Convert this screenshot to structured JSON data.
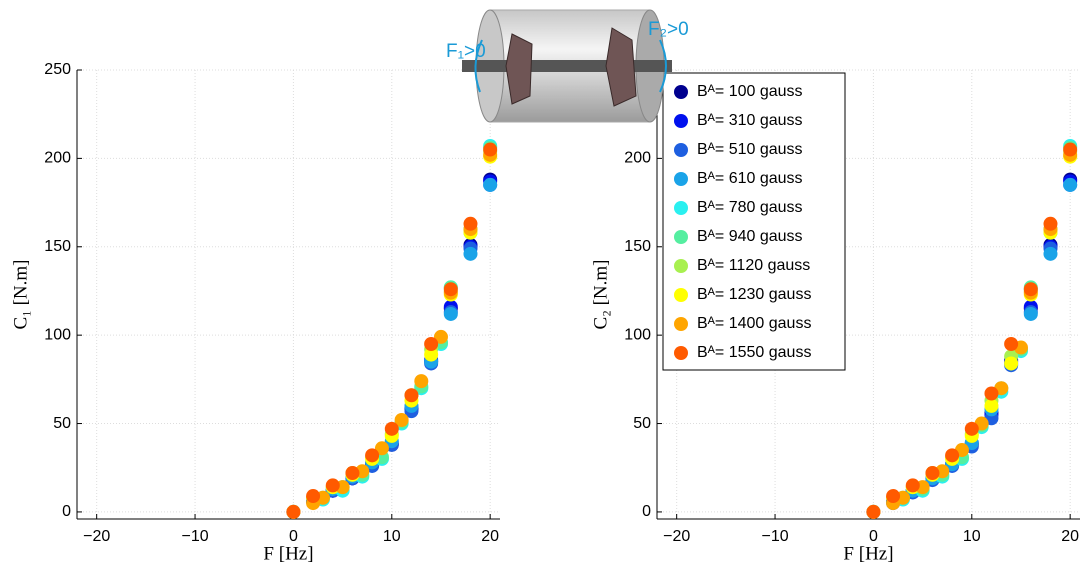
{
  "illustration": {
    "labels": [
      "F₁>0",
      "F₂>0"
    ]
  },
  "chart_data": [
    {
      "type": "scatter",
      "xlabel": "F [Hz]",
      "ylabel": "C₁ [N.m]",
      "xlim": [
        -22,
        21
      ],
      "ylim": [
        -4,
        250
      ],
      "xticks": [
        -20,
        -10,
        0,
        10,
        20
      ],
      "yticks": [
        0,
        50,
        100,
        150,
        200,
        250
      ],
      "grid": true,
      "series": [
        {
          "color": "#00008f",
          "x": [
            0,
            2,
            4,
            6,
            8,
            10,
            12,
            14,
            16,
            18,
            20
          ],
          "values": [
            0,
            6,
            12,
            19,
            27,
            38,
            58,
            85,
            115,
            151,
            188
          ]
        },
        {
          "color": "#0010ee",
          "x": [
            0,
            2,
            4,
            6,
            8,
            10,
            12,
            14,
            16,
            18,
            20
          ],
          "values": [
            0,
            6,
            12,
            19,
            27,
            39,
            59,
            86,
            116,
            150,
            187
          ]
        },
        {
          "color": "#1e5fe0",
          "x": [
            0,
            2,
            4,
            6,
            8,
            10,
            12,
            14,
            16,
            18,
            20
          ],
          "values": [
            0,
            6,
            12,
            19,
            26,
            38,
            57,
            84,
            113,
            149,
            185
          ]
        },
        {
          "color": "#1aa3e8",
          "x": [
            0,
            2,
            4,
            6,
            8,
            10,
            12,
            14,
            16,
            18,
            20
          ],
          "values": [
            0,
            7,
            13,
            20,
            28,
            40,
            60,
            85,
            112,
            146,
            185
          ]
        },
        {
          "color": "#2af0f0",
          "x": [
            0,
            3,
            5,
            7,
            9,
            11,
            13,
            15,
            16,
            18,
            20
          ],
          "values": [
            0,
            7,
            12,
            20,
            30,
            50,
            70,
            95,
            127,
            158,
            207
          ]
        },
        {
          "color": "#55eea0",
          "x": [
            0,
            3,
            5,
            7,
            9,
            11,
            13,
            15,
            16,
            18,
            20
          ],
          "values": [
            0,
            8,
            14,
            21,
            31,
            51,
            71,
            96,
            127,
            160,
            206
          ]
        },
        {
          "color": "#a8f050",
          "x": [
            0,
            2,
            4,
            6,
            8,
            10,
            12,
            14,
            16,
            18,
            20
          ],
          "values": [
            0,
            8,
            14,
            22,
            31,
            44,
            66,
            92,
            125,
            159,
            204
          ]
        },
        {
          "color": "#ffff00",
          "x": [
            0,
            2,
            4,
            6,
            8,
            10,
            12,
            14,
            16,
            18,
            20
          ],
          "values": [
            0,
            8,
            14,
            21,
            30,
            43,
            63,
            89,
            123,
            158,
            201
          ]
        },
        {
          "color": "#ffa500",
          "x": [
            0,
            2,
            3,
            5,
            7,
            9,
            11,
            13,
            15,
            16,
            18,
            20
          ],
          "values": [
            0,
            5,
            8,
            14,
            23,
            36,
            52,
            74,
            99,
            124,
            160,
            202
          ]
        },
        {
          "color": "#ff5a00",
          "x": [
            0,
            2,
            4,
            6,
            8,
            10,
            12,
            14,
            16,
            18,
            20
          ],
          "values": [
            0,
            9,
            15,
            22,
            32,
            47,
            66,
            95,
            126,
            163,
            205
          ]
        }
      ]
    },
    {
      "type": "scatter",
      "xlabel": "F [Hz]",
      "ylabel": "C₂ [N.m]",
      "xlim": [
        -22,
        21
      ],
      "ylim": [
        -4,
        250
      ],
      "xticks": [
        -20,
        -10,
        0,
        10,
        20
      ],
      "yticks": [
        0,
        50,
        100,
        150,
        200,
        250
      ],
      "grid": true,
      "legend": "upper left",
      "series": [
        {
          "name": "Bᴬ= 100 gauss",
          "color": "#00008f",
          "x": [
            0,
            2,
            4,
            6,
            8,
            10,
            12,
            14,
            16,
            18,
            20
          ],
          "values": [
            0,
            6,
            12,
            19,
            27,
            38,
            56,
            86,
            115,
            151,
            188
          ]
        },
        {
          "name": "Bᴬ= 310 gauss",
          "color": "#0010ee",
          "x": [
            0,
            2,
            4,
            6,
            8,
            10,
            12,
            14,
            16,
            18,
            20
          ],
          "values": [
            0,
            6,
            12,
            19,
            27,
            39,
            55,
            85,
            116,
            150,
            187
          ]
        },
        {
          "name": "Bᴬ= 510 gauss",
          "color": "#1e5fe0",
          "x": [
            0,
            2,
            4,
            6,
            8,
            10,
            12,
            14,
            16,
            18,
            20
          ],
          "values": [
            0,
            5,
            11,
            18,
            26,
            37,
            53,
            83,
            113,
            149,
            185
          ]
        },
        {
          "name": "Bᴬ= 610 gauss",
          "color": "#1aa3e8",
          "x": [
            0,
            2,
            4,
            6,
            8,
            10,
            12,
            14,
            16,
            18,
            20
          ],
          "values": [
            0,
            6,
            12,
            19,
            27,
            39,
            58,
            84,
            112,
            146,
            185
          ]
        },
        {
          "name": "Bᴬ= 780 gauss",
          "color": "#2af0f0",
          "x": [
            0,
            3,
            5,
            7,
            9,
            11,
            13,
            15,
            16,
            18,
            20
          ],
          "values": [
            0,
            7,
            12,
            20,
            30,
            48,
            68,
            91,
            126,
            158,
            207
          ]
        },
        {
          "name": "Bᴬ= 940 gauss",
          "color": "#55eea0",
          "x": [
            0,
            3,
            5,
            7,
            9,
            11,
            13,
            15,
            16,
            18,
            20
          ],
          "values": [
            0,
            8,
            13,
            21,
            31,
            49,
            70,
            92,
            127,
            160,
            206
          ]
        },
        {
          "name": "Bᴬ= 1120 gauss",
          "color": "#a8f050",
          "x": [
            0,
            2,
            4,
            6,
            8,
            10,
            12,
            14,
            16,
            18,
            20
          ],
          "values": [
            0,
            8,
            14,
            22,
            31,
            44,
            63,
            88,
            125,
            159,
            204
          ]
        },
        {
          "name": "Bᴬ= 1230 gauss",
          "color": "#ffff00",
          "x": [
            0,
            2,
            4,
            6,
            8,
            10,
            12,
            14,
            16,
            18,
            20
          ],
          "values": [
            0,
            8,
            14,
            21,
            30,
            43,
            60,
            84,
            123,
            158,
            201
          ]
        },
        {
          "name": "Bᴬ= 1400 gauss",
          "color": "#ffa500",
          "x": [
            0,
            2,
            3,
            5,
            7,
            9,
            11,
            13,
            15,
            16,
            18,
            20
          ],
          "values": [
            0,
            5,
            8,
            14,
            23,
            35,
            50,
            70,
            93,
            124,
            160,
            202
          ]
        },
        {
          "name": "Bᴬ= 1550 gauss",
          "color": "#ff5a00",
          "x": [
            0,
            2,
            4,
            6,
            8,
            10,
            12,
            14,
            16,
            18,
            20
          ],
          "values": [
            0,
            9,
            15,
            22,
            32,
            47,
            67,
            95,
            126,
            163,
            205
          ]
        }
      ]
    }
  ]
}
